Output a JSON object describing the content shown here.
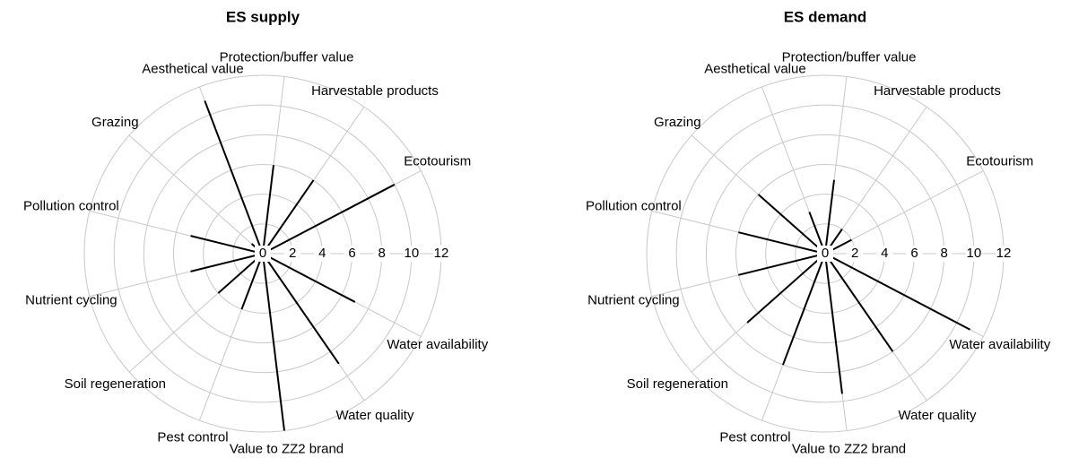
{
  "chart_data": [
    {
      "type": "radial",
      "title": "ES supply",
      "categories": [
        null,
        "Ecotourism",
        "Harvestable products",
        "Protection/buffer value",
        "Aesthetical value",
        "Grazing",
        "Pollution control",
        "Nutrient cycling",
        "Soil regeneration",
        "Pest control",
        "Value to ZZ2 brand",
        "Water quality",
        "Water availability"
      ],
      "values": [
        0,
        10,
        6,
        6,
        11,
        1,
        5,
        5,
        4,
        4,
        12,
        9,
        7
      ],
      "color": "#000000",
      "ylim": [
        0,
        12
      ],
      "yticks": [
        0,
        2,
        4,
        6,
        8,
        10,
        12
      ],
      "grid": true
    },
    {
      "type": "radial",
      "title": "ES demand",
      "categories": [
        null,
        "Ecotourism",
        "Harvestable products",
        "Protection/buffer value",
        "Aesthetical value",
        "Grazing",
        "Pollution control",
        "Nutrient cycling",
        "Soil regeneration",
        "Pest control",
        "Value to ZZ2 brand",
        "Water quality",
        "Water availability"
      ],
      "values": [
        0,
        2,
        2,
        5,
        3,
        6,
        6,
        6,
        7,
        8,
        9.5,
        8,
        11
      ],
      "color": "#000000",
      "ylim": [
        0,
        12
      ],
      "yticks": [
        0,
        2,
        4,
        6,
        8,
        10,
        12
      ],
      "grid": true
    }
  ]
}
